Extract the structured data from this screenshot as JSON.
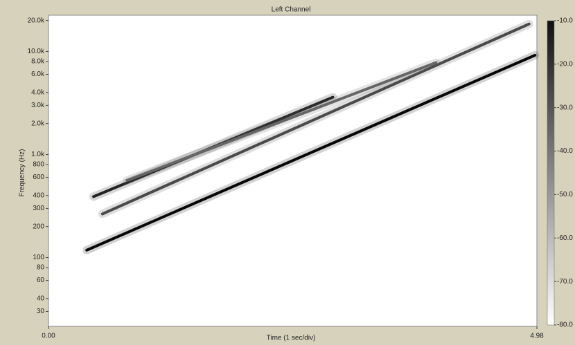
{
  "chart_data": {
    "type": "spectrogram",
    "title": "Left Channel",
    "x_label": "Time (1 sec/div)",
    "y_label": "Frequency (Hz)",
    "xlim": [
      0,
      4.98
    ],
    "xticks": [
      {
        "value": 0,
        "label": "0.00"
      },
      {
        "value": 4.98,
        "label": "4.98"
      }
    ],
    "ylim": [
      21.5,
      22500
    ],
    "log_y": true,
    "yticks": [
      {
        "value": 20000,
        "label": "20.0k"
      },
      {
        "value": 10000,
        "label": "10.0k"
      },
      {
        "value": 8000,
        "label": "8.0k"
      },
      {
        "value": 6000,
        "label": "6.0k"
      },
      {
        "value": 4000,
        "label": "4.0k"
      },
      {
        "value": 3000,
        "label": "3.0k"
      },
      {
        "value": 2000,
        "label": "2.0k"
      },
      {
        "value": 1000,
        "label": "1.0k"
      },
      800,
      600,
      400,
      300,
      200,
      100,
      80,
      60,
      40,
      30
    ],
    "clim": [
      -80,
      -10
    ],
    "cticks": [
      {
        "value": -10,
        "label": "-10.0"
      },
      {
        "value": -20,
        "label": "-20.0"
      },
      {
        "value": -30,
        "label": "-30.0"
      },
      {
        "value": -40,
        "label": "-40.0"
      },
      {
        "value": -50,
        "label": "-50.0"
      },
      {
        "value": -60,
        "label": "-60.0"
      },
      {
        "value": -70,
        "label": "-70.0"
      },
      {
        "value": -80,
        "label": "-80.0"
      }
    ],
    "series": [
      {
        "x": [
          0.39,
          4.96
        ],
        "values": [
          118,
          9200
        ],
        "level": -12
      },
      {
        "x": [
          0.55,
          4.9
        ],
        "values": [
          265,
          18500
        ],
        "level": -30
      },
      {
        "x": [
          0.46,
          2.9
        ],
        "values": [
          390,
          3600
        ],
        "level": -20
      },
      {
        "x": [
          0.8,
          3.95
        ],
        "values": [
          560,
          7800
        ],
        "level": -38
      }
    ]
  }
}
